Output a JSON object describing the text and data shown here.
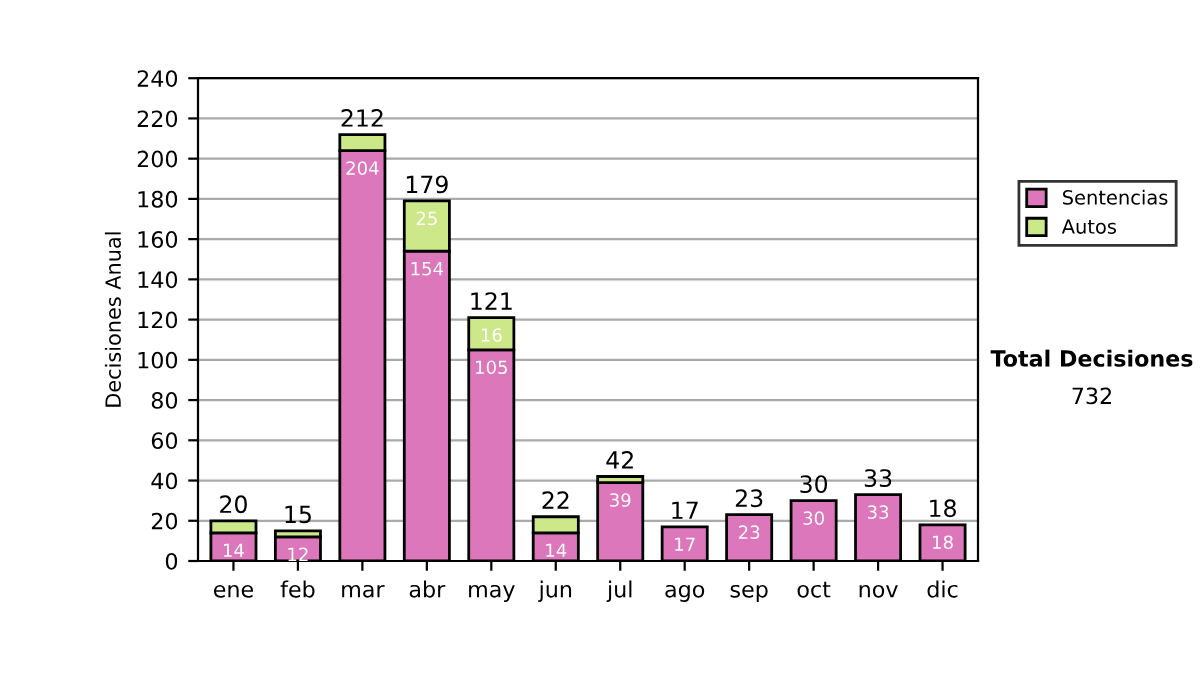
{
  "chart_data": {
    "type": "bar",
    "stacked": true,
    "ylabel": "Decisiones Anual",
    "categories": [
      "ene",
      "feb",
      "mar",
      "abr",
      "may",
      "jun",
      "jul",
      "ago",
      "sep",
      "oct",
      "nov",
      "dic"
    ],
    "series": [
      {
        "name": "Sentencias",
        "color": "#dd77bb",
        "values": [
          14,
          12,
          204,
          154,
          105,
          14,
          39,
          17,
          23,
          30,
          33,
          18
        ],
        "value_labels": [
          "14",
          "12",
          "204",
          "154",
          "105",
          "14",
          "39",
          "17",
          "23",
          "30",
          "33",
          "18"
        ]
      },
      {
        "name": "Autos",
        "color": "#cce888",
        "values": [
          6,
          3,
          8,
          25,
          16,
          8,
          3,
          null,
          null,
          null,
          null,
          null
        ],
        "value_labels": [
          null,
          null,
          null,
          "25",
          "16",
          null,
          null,
          null,
          null,
          null,
          null,
          null
        ]
      }
    ],
    "totals": [
      "20",
      "15",
      "212",
      "179",
      "121",
      "22",
      "42",
      "17",
      "23",
      "30",
      "33",
      "18"
    ],
    "ylim": [
      0,
      240
    ],
    "yticks": [
      0,
      20,
      40,
      60,
      80,
      100,
      120,
      140,
      160,
      180,
      200,
      220,
      240
    ],
    "grid": "y",
    "legend": "right",
    "annotations": [
      "Total Decisiones",
      "732"
    ]
  }
}
